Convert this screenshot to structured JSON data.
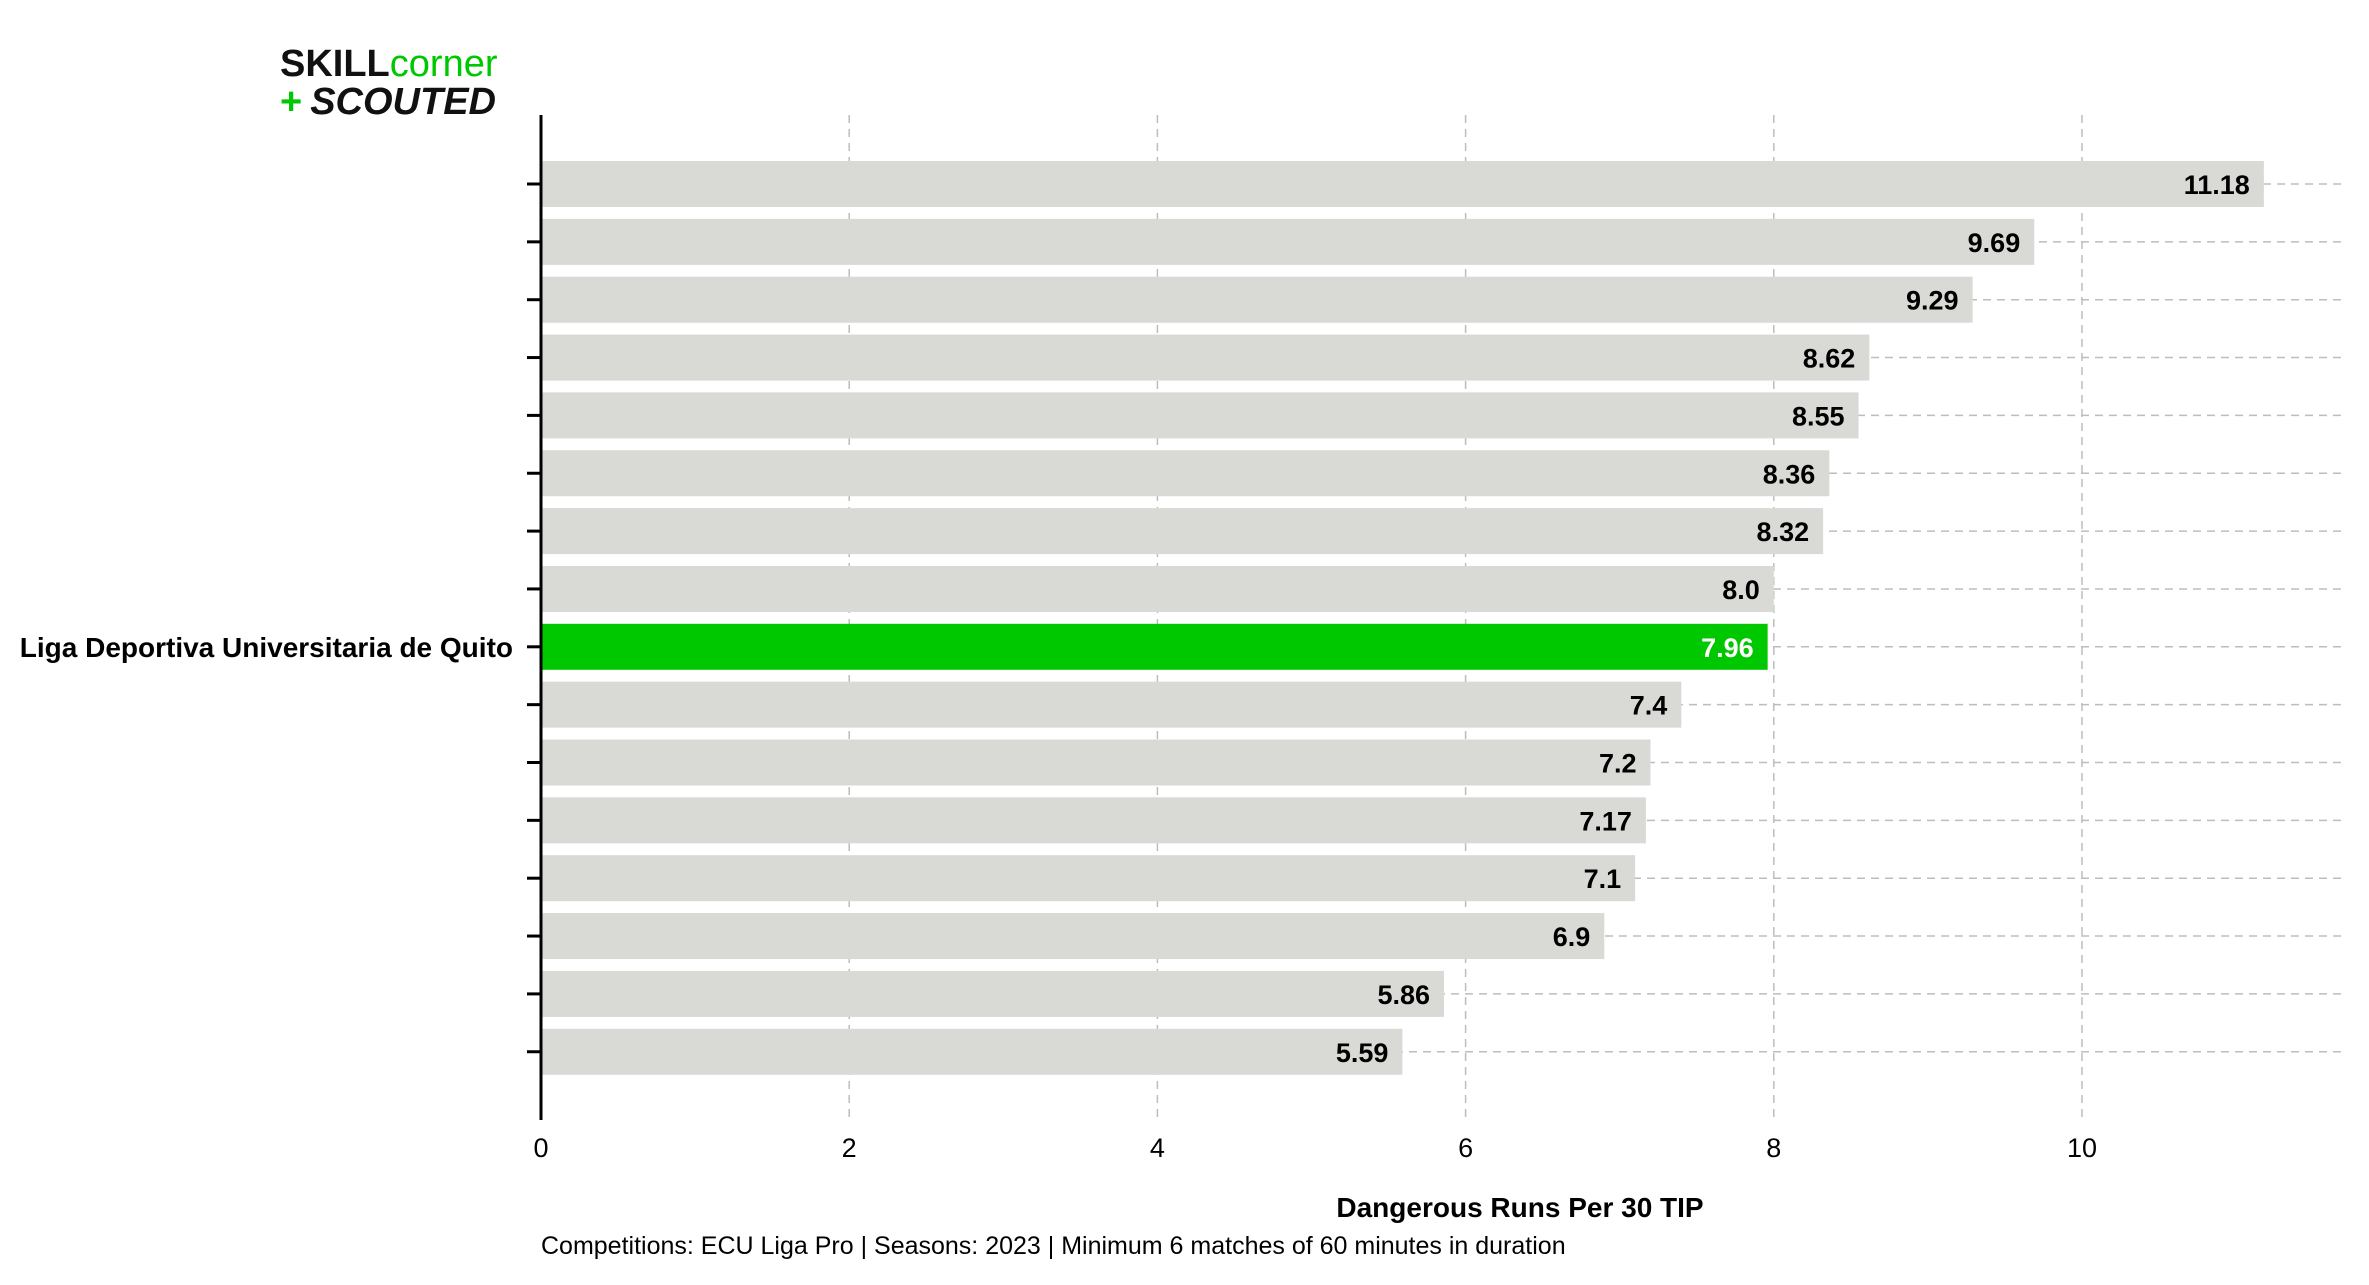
{
  "logo": {
    "line1_a": "SKILL",
    "line1_b": "corner",
    "line2_plus": "+",
    "line2_word": "SCOUTED",
    "color_dark": "#111111",
    "color_green": "#00c800"
  },
  "colors": {
    "bar_default": "#d9d9d6",
    "bar_highlight": "#00c800",
    "grid": "#bdbdbd",
    "axis": "#000000"
  },
  "chart_data": {
    "type": "bar",
    "orientation": "horizontal",
    "categories": [
      "",
      "",
      "",
      "",
      "",
      "",
      "",
      "",
      "Liga Deportiva Universitaria de Quito",
      "",
      "",
      "",
      "",
      "",
      "",
      ""
    ],
    "values": [
      11.18,
      9.69,
      9.29,
      8.62,
      8.55,
      8.36,
      8.32,
      8.0,
      7.96,
      7.4,
      7.2,
      7.17,
      7.1,
      6.9,
      5.86,
      5.59
    ],
    "value_labels": [
      "11.18",
      "9.69",
      "9.29",
      "8.62",
      "8.55",
      "8.36",
      "8.32",
      "8.0",
      "7.96",
      "7.4",
      "7.2",
      "7.17",
      "7.1",
      "6.9",
      "5.86",
      "5.59"
    ],
    "highlight_index": 8,
    "xlabel": "Dangerous Runs Per 30 TIP",
    "xlim": [
      0,
      11.6
    ],
    "xticks": [
      0,
      2,
      4,
      6,
      8,
      10
    ],
    "grid": true,
    "footnote": "Competitions: ECU Liga Pro | Seasons: 2023 | Minimum 6 matches of 60 minutes in duration"
  }
}
